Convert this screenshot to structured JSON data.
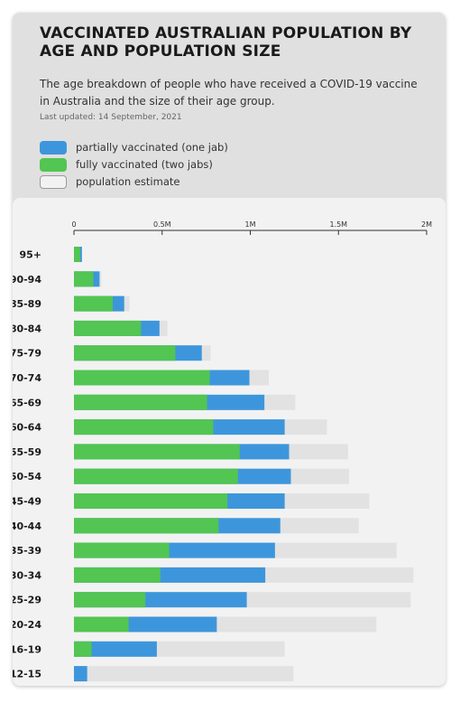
{
  "header": {
    "title": "VACCINATED AUSTRALIAN POPULATION BY AGE AND POPULATION SIZE",
    "subtitle": "The age breakdown of people who have received a COVID-19 vaccine in Australia and the size of their age group.",
    "updated": "Last updated: 14 September, 2021"
  },
  "legend": [
    {
      "label": "partially vaccinated (one jab)",
      "color": "#3d96dc"
    },
    {
      "label": "fully vaccinated (two jabs)",
      "color": "#52c552"
    },
    {
      "label": "population estimate",
      "color": "#e2e2e2"
    }
  ],
  "colors": {
    "partial": "#3d96dc",
    "full": "#52c552",
    "population": "#e2e2e2"
  },
  "chart_data": {
    "type": "bar",
    "orientation": "horizontal",
    "stacked_overlay": true,
    "categories": [
      "95+",
      "90-94",
      "85-89",
      "80-84",
      "75-79",
      "70-74",
      "65-69",
      "60-64",
      "55-59",
      "50-54",
      "45-49",
      "40-44",
      "35-39",
      "30-34",
      "25-29",
      "20-24",
      "16-19",
      "12-15"
    ],
    "series": [
      {
        "name": "fully vaccinated (two jabs)",
        "values": [
          35000,
          110000,
          220000,
          380000,
          575000,
          770000,
          755000,
          790000,
          940000,
          930000,
          870000,
          820000,
          540000,
          490000,
          405000,
          310000,
          100000,
          0
        ]
      },
      {
        "name": "partially vaccinated (one jab)",
        "values": [
          45000,
          145000,
          285000,
          485000,
          725000,
          995000,
          1080000,
          1195000,
          1220000,
          1230000,
          1195000,
          1170000,
          1140000,
          1085000,
          980000,
          810000,
          470000,
          75000
        ]
      },
      {
        "name": "population estimate",
        "values": [
          45000,
          155000,
          315000,
          530000,
          775000,
          1105000,
          1255000,
          1435000,
          1555000,
          1560000,
          1675000,
          1615000,
          1830000,
          1925000,
          1910000,
          1715000,
          1195000,
          1245000
        ]
      }
    ],
    "xlim": [
      0,
      2000000
    ],
    "ticks": [
      {
        "value": 0,
        "label": "0"
      },
      {
        "value": 500000,
        "label": "0.5M"
      },
      {
        "value": 1000000,
        "label": "1M"
      },
      {
        "value": 1500000,
        "label": "1.5M"
      },
      {
        "value": 2000000,
        "label": "2M"
      }
    ],
    "grid": false,
    "legend_position": "top-left"
  }
}
